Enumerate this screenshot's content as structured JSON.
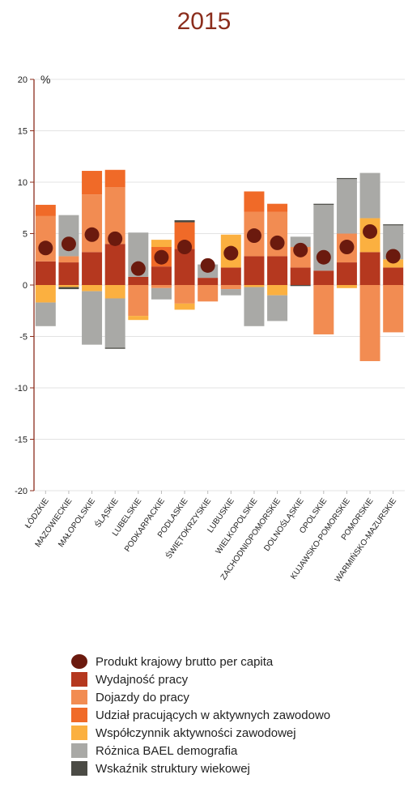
{
  "chart_data": {
    "type": "bar",
    "title": "2015",
    "ylabel": "%",
    "ylim": [
      -20,
      20
    ],
    "yticks": [
      -20,
      -15,
      -10,
      -5,
      0,
      5,
      10,
      15,
      20
    ],
    "grid": true,
    "legend_position": "bottom",
    "categories": [
      "ŁÓDZKIE",
      "MAZOWIECKIE",
      "MAŁOPOLSKIE",
      "ŚLĄSKIE",
      "LUBELSKIE",
      "PODKARPACKIE",
      "PODLASKIE",
      "ŚWIĘTOKRZYSKIE",
      "LUBUSKIE",
      "WIELKOPOLSKIE",
      "ZACHODNIOPOMORSKIE",
      "DOLNOŚLĄSKIE",
      "OPOLSKIE",
      "KUJAWSKO-POMORSKIE",
      "POMORSKIE",
      "WARMIŃSKO-MAZURSKIE"
    ],
    "series": [
      {
        "name": "Produkt krajowy brutto per capita",
        "kind": "point",
        "color": "#6b1a0e",
        "values": [
          3.6,
          4.0,
          4.9,
          4.5,
          1.6,
          2.7,
          3.7,
          1.9,
          3.1,
          4.8,
          4.1,
          3.4,
          2.7,
          3.7,
          5.2,
          2.8
        ]
      },
      {
        "name": "Wydajność pracy",
        "kind": "bar",
        "color": "#b5381f",
        "values": [
          2.3,
          2.2,
          3.2,
          4.0,
          0.8,
          1.8,
          3.5,
          0.7,
          1.7,
          2.8,
          2.8,
          1.7,
          1.4,
          2.2,
          3.2,
          1.7
        ]
      },
      {
        "name": "Dojazdy do pracy",
        "kind": "bar",
        "color": "#f28c52",
        "values": [
          4.4,
          0.6,
          5.6,
          5.5,
          -3.0,
          -0.3,
          -1.8,
          -1.6,
          -0.4,
          4.3,
          4.3,
          2.0,
          -4.8,
          2.8,
          -7.4,
          -4.6
        ]
      },
      {
        "name": "Udział pracujących w aktywnych zawodowo",
        "kind": "bar",
        "color": "#f06a28",
        "values": [
          1.1,
          0.0,
          2.3,
          1.7,
          0.0,
          1.9,
          2.6,
          0.0,
          0.0,
          2.0,
          0.8,
          0.0,
          0.0,
          0.0,
          0.0,
          0.0
        ]
      },
      {
        "name": "Współczynnik aktywności zawodowej",
        "kind": "bar",
        "color": "#fbb040",
        "values": [
          -1.7,
          -0.2,
          -0.6,
          -1.3,
          -0.4,
          0.7,
          -0.6,
          0.0,
          3.2,
          -0.2,
          -1.0,
          0.0,
          0.0,
          -0.3,
          3.3,
          0.8
        ]
      },
      {
        "name": "Różnica BAEL demografia",
        "kind": "bar",
        "color": "#a9a9a6",
        "values": [
          -2.3,
          4.0,
          -5.2,
          -4.8,
          4.3,
          -1.1,
          0.0,
          1.3,
          -0.6,
          -3.8,
          -2.5,
          1.0,
          6.4,
          5.3,
          4.4,
          3.3
        ]
      },
      {
        "name": "Wskaźnik struktury wiekowej",
        "kind": "bar",
        "color": "#4b4b45",
        "values": [
          0.0,
          -0.2,
          0.0,
          -0.1,
          0.0,
          0.0,
          0.2,
          0.0,
          0.0,
          0.0,
          0.0,
          -0.1,
          0.1,
          0.1,
          0.0,
          0.1
        ]
      }
    ]
  }
}
